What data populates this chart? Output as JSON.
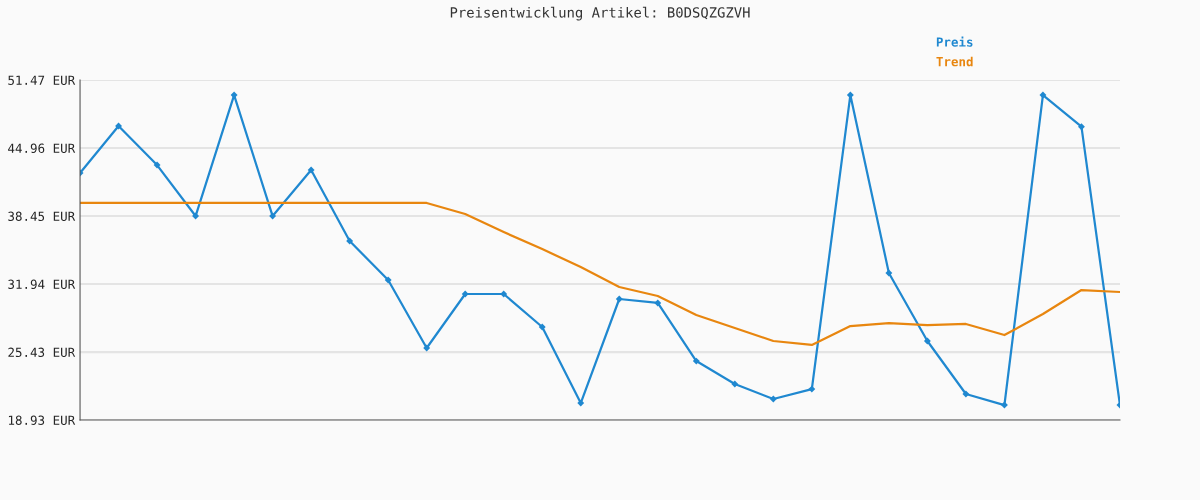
{
  "chart_data": {
    "type": "line",
    "title": "Preisentwicklung Artikel: B0DSQZGZVH",
    "categories": [
      null,
      null,
      null,
      null,
      null,
      null,
      null,
      null,
      null,
      null,
      null,
      null,
      null,
      null,
      null,
      null,
      null,
      null,
      null,
      null,
      null,
      null,
      null,
      null,
      null,
      null,
      null,
      null
    ],
    "series": [
      {
        "name": "Preis",
        "color": "#1f88d0",
        "marker": "diamond",
        "values": [
          42.57,
          47.07,
          43.33,
          38.45,
          50.03,
          38.45,
          42.86,
          36.06,
          32.33,
          25.82,
          30.99,
          30.99,
          27.83,
          20.55,
          30.51,
          30.13,
          24.57,
          22.37,
          20.94,
          21.89,
          50.03,
          33.0,
          26.49,
          21.42,
          20.36,
          50.03,
          47.0,
          20.36
        ]
      },
      {
        "name": "Trend",
        "color": "#e8860f",
        "marker": "none",
        "values": [
          39.7,
          39.7,
          39.7,
          39.7,
          39.7,
          39.7,
          39.7,
          39.7,
          39.7,
          39.7,
          38.64,
          36.92,
          35.29,
          33.57,
          31.66,
          30.8,
          28.98,
          27.73,
          26.49,
          26.11,
          27.92,
          28.21,
          28.02,
          28.12,
          27.06,
          29.07,
          31.37,
          31.18
        ]
      }
    ],
    "ylim": [
      18.93,
      51.47
    ],
    "yticks": [
      {
        "value": 18.93,
        "label": "18.93 EUR"
      },
      {
        "value": 25.43,
        "label": "25.43 EUR"
      },
      {
        "value": 31.94,
        "label": "31.94 EUR"
      },
      {
        "value": 38.45,
        "label": "38.45 EUR"
      },
      {
        "value": 44.96,
        "label": "44.96 EUR"
      },
      {
        "value": 51.47,
        "label": "51.47 EUR"
      }
    ],
    "grid": "y",
    "legend": "top right",
    "line_style": "solid"
  }
}
